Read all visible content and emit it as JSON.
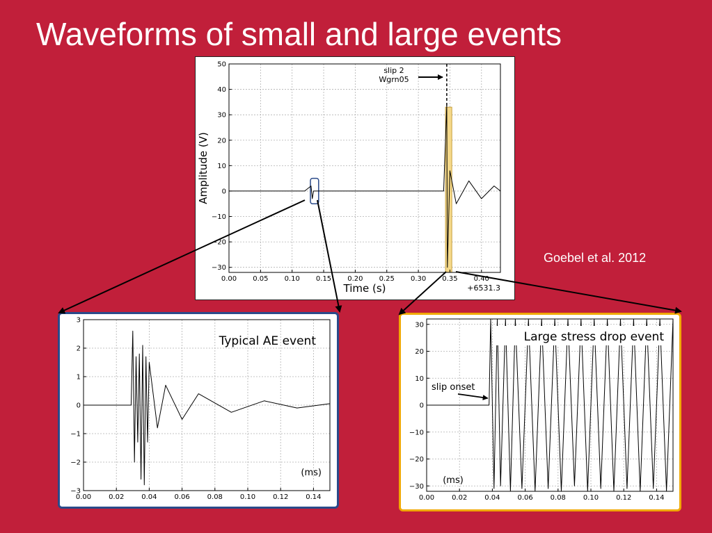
{
  "slide": {
    "title": "Waveforms of small and large events",
    "citation": "Goebel et al. 2012",
    "background": "#c11f3a"
  },
  "chart_data": [
    {
      "type": "line",
      "ylabel": "Amplitude (V)",
      "xlabel": "Time (s)",
      "xlim": [
        0.0,
        0.43
      ],
      "ylim": [
        -32,
        50
      ],
      "x_ticks": [
        "0.00",
        "0.05",
        "0.10",
        "0.15",
        "0.20",
        "0.25",
        "0.30",
        "0.35",
        "0.40"
      ],
      "y_ticks": [
        "50",
        "40",
        "30",
        "20",
        "10",
        "0",
        "−10",
        "−20",
        "−30"
      ],
      "x_offset_label": "+6531.3",
      "grid": true,
      "annotations": [
        {
          "text_lines": [
            "slip 2",
            "Wgrn05"
          ],
          "points_to_x": 0.345,
          "style": "dashed vertical line with arrow"
        }
      ],
      "highlights": [
        {
          "type": "box",
          "x_range": [
            0.129,
            0.142
          ],
          "y_range": [
            -5,
            5
          ],
          "color": "#2a4a8a"
        },
        {
          "type": "box",
          "x_range": [
            0.343,
            0.353
          ],
          "y_range": [
            -32,
            33
          ],
          "color": "#f5d98a"
        }
      ],
      "series": [
        {
          "values": [
            [
              0.0,
              0
            ],
            [
              0.12,
              0
            ],
            [
              0.13,
              2
            ],
            [
              0.132,
              -3
            ],
            [
              0.134,
              0
            ],
            [
              0.34,
              0
            ],
            [
              0.345,
              34
            ],
            [
              0.346,
              -30
            ],
            [
              0.35,
              8
            ],
            [
              0.36,
              -5
            ],
            [
              0.38,
              4
            ],
            [
              0.4,
              -3
            ],
            [
              0.42,
              2
            ],
            [
              0.43,
              0
            ]
          ]
        }
      ]
    },
    {
      "type": "line",
      "annotation": "Typical AE event",
      "unit_label": "(ms)",
      "xlim": [
        0.0,
        0.15
      ],
      "ylim": [
        -3,
        3
      ],
      "x_ticks": [
        "0.00",
        "0.02",
        "0.04",
        "0.06",
        "0.08",
        "0.10",
        "0.12",
        "0.14"
      ],
      "y_ticks": [
        "3",
        "2",
        "1",
        "0",
        "−1",
        "−2",
        "−3"
      ],
      "grid": true,
      "series": [
        {
          "values": [
            [
              0.0,
              0
            ],
            [
              0.029,
              0
            ],
            [
              0.03,
              2.6
            ],
            [
              0.031,
              -2.0
            ],
            [
              0.032,
              1.7
            ],
            [
              0.033,
              -1.3
            ],
            [
              0.034,
              1.8
            ],
            [
              0.035,
              -2.6
            ],
            [
              0.036,
              2.1
            ],
            [
              0.037,
              -2.8
            ],
            [
              0.038,
              1.7
            ],
            [
              0.039,
              -1.3
            ],
            [
              0.04,
              1.5
            ],
            [
              0.045,
              -0.8
            ],
            [
              0.05,
              0.7
            ],
            [
              0.06,
              -0.5
            ],
            [
              0.07,
              0.4
            ],
            [
              0.09,
              -0.25
            ],
            [
              0.11,
              0.15
            ],
            [
              0.13,
              -0.1
            ],
            [
              0.15,
              0.05
            ]
          ]
        }
      ]
    },
    {
      "type": "line",
      "annotation": "Large stress drop event",
      "unit_label": "(ms)",
      "onset_label": "slip onset",
      "xlim": [
        0.0,
        0.15
      ],
      "ylim": [
        -32,
        32
      ],
      "x_ticks": [
        "0.00",
        "0.02",
        "0.04",
        "0.06",
        "0.08",
        "0.10",
        "0.12",
        "0.14"
      ],
      "y_ticks": [
        "30",
        "20",
        "10",
        "0",
        "−10",
        "−20",
        "−30"
      ],
      "grid": true,
      "series": [
        {
          "values": [
            [
              0.0,
              0
            ],
            [
              0.038,
              0
            ],
            [
              0.039,
              32
            ],
            [
              0.041,
              -31
            ],
            [
              0.043,
              32
            ],
            [
              0.045,
              -30
            ],
            [
              0.048,
              32
            ],
            [
              0.051,
              -32
            ],
            [
              0.054,
              32
            ],
            [
              0.058,
              -31
            ],
            [
              0.062,
              32
            ],
            [
              0.066,
              -32
            ],
            [
              0.07,
              32
            ],
            [
              0.074,
              -31
            ],
            [
              0.078,
              32
            ],
            [
              0.082,
              -32
            ],
            [
              0.086,
              32
            ],
            [
              0.09,
              -30
            ],
            [
              0.094,
              32
            ],
            [
              0.098,
              -32
            ],
            [
              0.102,
              32
            ],
            [
              0.106,
              -31
            ],
            [
              0.11,
              32
            ],
            [
              0.114,
              -32
            ],
            [
              0.118,
              32
            ],
            [
              0.122,
              -31
            ],
            [
              0.126,
              32
            ],
            [
              0.13,
              -32
            ],
            [
              0.134,
              32
            ],
            [
              0.138,
              -31
            ],
            [
              0.142,
              32
            ],
            [
              0.146,
              -32
            ],
            [
              0.15,
              32
            ]
          ]
        }
      ]
    }
  ]
}
